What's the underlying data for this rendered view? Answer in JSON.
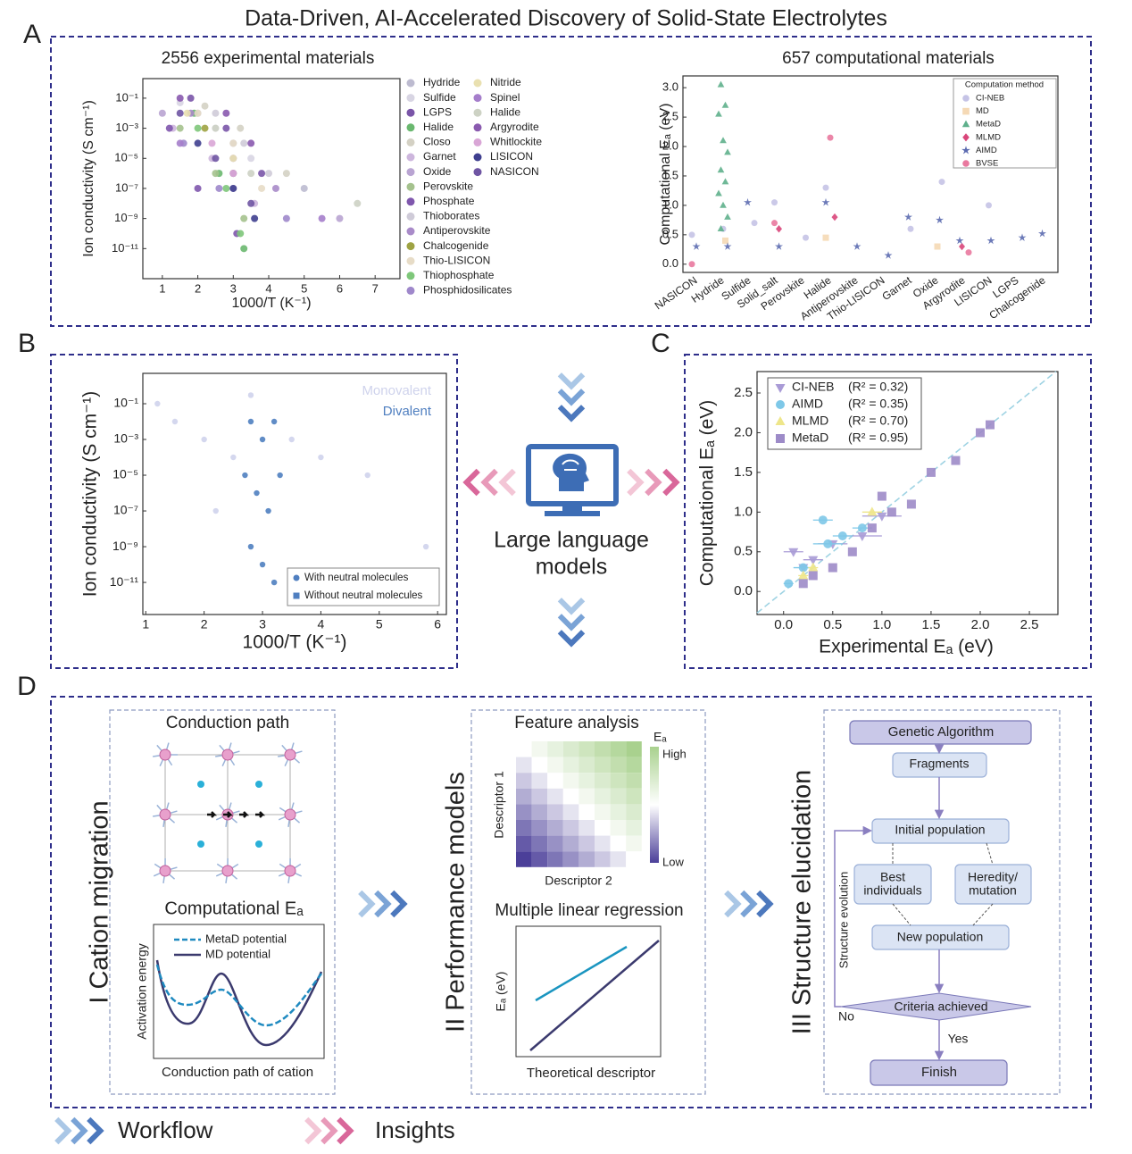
{
  "title": "Data-Driven, AI-Accelerated Discovery of Solid-State Electrolytes",
  "panel_labels": [
    "A",
    "B",
    "C",
    "D"
  ],
  "chart_data": [
    {
      "type": "scatter",
      "title": "2556 experimental materials",
      "x_label": "1000/T (K⁻¹)",
      "y_label": "Ion conductivity (S cm⁻¹)",
      "xlim": [
        0.45,
        7.7
      ],
      "xticks": [
        1,
        2,
        3,
        4,
        5,
        6,
        7
      ],
      "y_log": true,
      "ylim": [
        1e-13,
        2
      ],
      "yticks": [
        {
          "value": 0.1,
          "label": "10⁻¹"
        },
        {
          "value": 0.001,
          "label": "10⁻³"
        },
        {
          "value": 1e-05,
          "label": "10⁻⁵"
        },
        {
          "value": 1e-07,
          "label": "10⁻⁷"
        },
        {
          "value": 1e-09,
          "label": "10⁻⁹"
        },
        {
          "value": 1e-11,
          "label": "10⁻¹¹"
        }
      ],
      "series": [
        {
          "name": "Hydride",
          "color": "#bdbbd0",
          "marker": "circle",
          "x": [
            2.0,
            3.0,
            5.0
          ],
          "values": [
            0.01,
            0.0001,
            1e-07
          ]
        },
        {
          "name": "Sulfide",
          "color": "#d8d5e3",
          "marker": "circle",
          "x": [
            1.5,
            2.5,
            3.5
          ],
          "values": [
            0.05,
            0.001,
            1e-05
          ]
        },
        {
          "name": "LGPS",
          "color": "#7a55a8",
          "marker": "circle",
          "x": [
            1.8,
            2.8,
            3.8
          ],
          "values": [
            0.1,
            0.001,
            1e-06
          ]
        },
        {
          "name": "Halide",
          "color": "#6ab86f",
          "marker": "circle",
          "x": [
            1.9,
            2.6,
            3.3
          ],
          "values": [
            0.01,
            1e-06,
            1e-11
          ]
        },
        {
          "name": "Closo",
          "color": "#d4d1c4",
          "marker": "circle",
          "x": [
            2.2,
            3.2,
            4.5
          ],
          "values": [
            0.03,
            0.001,
            1e-06
          ]
        },
        {
          "name": "Garnet",
          "color": "#cdb6dd",
          "marker": "circle",
          "x": [
            1.3,
            2.4,
            3.6
          ],
          "values": [
            0.001,
            1e-05,
            1e-08
          ]
        },
        {
          "name": "Oxide",
          "color": "#b9a4d2",
          "marker": "circle",
          "x": [
            1.0,
            3.0,
            6.0
          ],
          "values": [
            0.01,
            1e-07,
            1e-09
          ]
        },
        {
          "name": "Perovskite",
          "color": "#a5c28e",
          "marker": "circle",
          "x": [
            1.5,
            2.5,
            3.3
          ],
          "values": [
            0.001,
            1e-06,
            1e-09
          ]
        },
        {
          "name": "Phosphate",
          "color": "#7f57ad",
          "marker": "circle",
          "x": [
            1.2,
            2.0,
            3.1
          ],
          "values": [
            0.001,
            1e-07,
            1e-10
          ]
        },
        {
          "name": "Thioborates",
          "color": "#cfcbd8",
          "marker": "circle",
          "x": [
            2.5,
            3.3,
            4.0
          ],
          "values": [
            0.01,
            0.0001,
            1e-06
          ]
        },
        {
          "name": "Antiperovskite",
          "color": "#a98bc9",
          "marker": "circle",
          "x": [
            1.8,
            3.0,
            4.2
          ],
          "values": [
            0.01,
            1e-05,
            1e-07
          ]
        },
        {
          "name": "Chalcogenide",
          "color": "#9ea343",
          "marker": "circle",
          "x": [
            2.2,
            3.0
          ],
          "values": [
            0.001,
            1e-06
          ]
        },
        {
          "name": "Thio-LISICON",
          "color": "#e7dcc7",
          "marker": "circle",
          "x": [
            2.0,
            3.0,
            3.8
          ],
          "values": [
            0.01,
            0.0001,
            1e-07
          ]
        },
        {
          "name": "Thiophosphate",
          "color": "#7ec77a",
          "marker": "circle",
          "x": [
            2.0,
            2.8,
            3.2
          ],
          "values": [
            0.001,
            1e-07,
            1e-10
          ]
        },
        {
          "name": "Phosphidosilicates",
          "color": "#9f88cb",
          "marker": "circle",
          "x": [
            1.6,
            2.6,
            4.5
          ],
          "values": [
            0.0001,
            1e-07,
            1e-09
          ]
        },
        {
          "name": "Nitride",
          "color": "#e9e0b0",
          "marker": "circle",
          "x": [
            1.7,
            3.0
          ],
          "values": [
            0.01,
            1e-05
          ]
        },
        {
          "name": "Spinel",
          "color": "#a57ecb",
          "marker": "circle",
          "x": [
            1.5,
            3.0,
            5.5
          ],
          "values": [
            0.0001,
            1e-06,
            1e-09
          ]
        },
        {
          "name": "Halide",
          "color": "#cdd2c4",
          "marker": "circle",
          "x": [
            2.5,
            3.5,
            6.5
          ],
          "values": [
            0.001,
            1e-06,
            1e-08
          ]
        },
        {
          "name": "Argyrodite",
          "color": "#8a5aaf",
          "marker": "circle",
          "x": [
            1.5,
            2.8,
            3.5
          ],
          "values": [
            0.1,
            0.01,
            0.0001
          ]
        },
        {
          "name": "Whitlockite",
          "color": "#d9a6d6",
          "marker": "circle",
          "x": [
            2.4,
            3.0
          ],
          "values": [
            0.0001,
            1e-06
          ]
        },
        {
          "name": "LISICON",
          "color": "#3f3f8f",
          "marker": "circle",
          "x": [
            2.0,
            3.0,
            3.6
          ],
          "values": [
            0.0001,
            1e-07,
            1e-09
          ]
        },
        {
          "name": "NASICON",
          "color": "#6f55a3",
          "marker": "circle",
          "x": [
            1.5,
            2.5,
            3.5
          ],
          "values": [
            0.01,
            1e-05,
            1e-08
          ]
        }
      ]
    },
    {
      "type": "strip",
      "title": "657 computational materials",
      "y_label": "Computational Eₐ (eV)",
      "legend_title": "Computation method",
      "categories": [
        "NASICON",
        "Hydride",
        "Sulfide",
        "Solid_salt",
        "Perovskite",
        "Halide",
        "Antiperovskite",
        "Thio-LISICON",
        "Garnet",
        "Oxide",
        "Argyrodite",
        "LISICON",
        "LGPS",
        "Chalcogenide"
      ],
      "ylim": [
        -0.14,
        3.2
      ],
      "yticks": [
        {
          "value": 0,
          "label": "0.0"
        },
        0.5,
        {
          "value": 1,
          "label": "1.0"
        },
        1.5,
        {
          "value": 2,
          "label": "2.0"
        },
        2.5,
        {
          "value": 3,
          "label": "3.0"
        }
      ],
      "series": [
        {
          "name": "CI-NEB",
          "color": "#c5c3e6",
          "marker": "circle",
          "x": [
            "NASICON",
            "Hydride",
            "Sulfide",
            "Solid_salt",
            "Perovskite",
            "Halide",
            "Garnet",
            "Oxide",
            "LISICON"
          ],
          "values": [
            0.5,
            0.6,
            0.7,
            1.05,
            0.45,
            1.3,
            0.6,
            1.4,
            1.0
          ]
        },
        {
          "name": "MD",
          "color": "#f5d9b5",
          "marker": "square",
          "x": [
            "Hydride",
            "Halide",
            "Oxide"
          ],
          "values": [
            0.4,
            0.45,
            0.3
          ]
        },
        {
          "name": "MetaD",
          "color": "#5fb08c",
          "marker": "triangle",
          "x": [
            "Hydride",
            "Hydride",
            "Hydride",
            "Hydride",
            "Hydride",
            "Hydride",
            "Hydride",
            "Hydride",
            "Hydride",
            "Hydride",
            "Hydride"
          ],
          "values": [
            3.05,
            2.7,
            2.55,
            2.1,
            1.9,
            1.6,
            1.4,
            1.2,
            1.0,
            0.8,
            0.6
          ]
        },
        {
          "name": "MLMD",
          "color": "#d9467a",
          "marker": "diamond",
          "x": [
            "Halide",
            "Argyrodite",
            "Solid_salt"
          ],
          "values": [
            0.8,
            0.3,
            0.6
          ]
        },
        {
          "name": "AIMD",
          "color": "#5c6bb0",
          "marker": "star",
          "x": [
            "NASICON",
            "Hydride",
            "Sulfide",
            "Solid_salt",
            "Halide",
            "Antiperovskite",
            "Thio-LISICON",
            "Garnet",
            "Oxide",
            "Argyrodite",
            "LISICON",
            "LGPS",
            "Chalcogenide"
          ],
          "values": [
            0.3,
            0.3,
            1.05,
            0.3,
            1.05,
            0.3,
            0.15,
            0.8,
            0.75,
            0.4,
            0.4,
            0.45,
            0.52
          ]
        },
        {
          "name": "BVSE",
          "color": "#e9799f",
          "marker": "circle",
          "x": [
            "NASICON",
            "Halide",
            "Argyrodite",
            "Solid_salt"
          ],
          "values": [
            0.0,
            2.15,
            0.2,
            0.7
          ]
        }
      ]
    },
    {
      "type": "scatter",
      "x_label": "1000/T (K⁻¹)",
      "y_label": "Ion conductivity (S cm⁻¹)",
      "xlim": [
        0.95,
        6.15
      ],
      "xticks": [
        1,
        2,
        3,
        4,
        5,
        6
      ],
      "y_log": true,
      "ylim": [
        1.6e-13,
        5
      ],
      "yticks": [
        {
          "value": 0.1,
          "label": "10⁻¹"
        },
        {
          "value": 0.001,
          "label": "10⁻³"
        },
        {
          "value": 1e-05,
          "label": "10⁻⁵"
        },
        {
          "value": 1e-07,
          "label": "10⁻⁷"
        },
        {
          "value": 1e-09,
          "label": "10⁻⁹"
        },
        {
          "value": 1e-11,
          "label": "10⁻¹¹"
        }
      ],
      "series": [
        {
          "name": "Monovalent",
          "color": "#cfd3ec",
          "marker": "circle",
          "x": [
            1.2,
            1.5,
            2.0,
            2.5,
            2.8,
            3.5,
            4.0,
            4.8,
            5.8,
            2.2
          ],
          "values": [
            0.1,
            0.01,
            0.001,
            0.0001,
            0.3,
            0.001,
            0.0001,
            1e-05,
            1e-09,
            1e-07
          ]
        },
        {
          "name": "Divalent",
          "color": "#4f7fc0",
          "marker": "circle",
          "x": [
            2.8,
            3.0,
            3.2,
            2.7,
            2.9,
            3.1,
            3.3,
            2.8,
            3.0,
            3.2
          ],
          "values": [
            0.01,
            0.001,
            0.01,
            1e-05,
            1e-06,
            1e-07,
            1e-05,
            1e-09,
            1e-10,
            1e-11
          ]
        }
      ],
      "marker_legend": [
        {
          "name": "With neutral molecules",
          "marker": "circle"
        },
        {
          "name": "Without neutral molecules",
          "marker": "square"
        }
      ]
    },
    {
      "type": "scatter",
      "x_label": "Experimental Eₐ (eV)",
      "y_label": "Computational Eₐ (eV)",
      "diagonal": true,
      "xlim": [
        -0.27,
        2.79
      ],
      "xticks": [
        {
          "value": 0,
          "label": "0.0"
        },
        0.5,
        {
          "value": 1,
          "label": "1.0"
        },
        1.5,
        {
          "value": 2,
          "label": "2.0"
        },
        2.5
      ],
      "ylim": [
        -0.29,
        2.77
      ],
      "yticks": [
        {
          "value": 0,
          "label": "0.0"
        },
        0.5,
        {
          "value": 1,
          "label": "1.0"
        },
        1.5,
        {
          "value": 2,
          "label": "2.0"
        },
        2.5
      ],
      "series": [
        {
          "name": "CI-NEB",
          "r2": "(R² = 0.32)",
          "color": "#a99bd6",
          "marker": "triangle-down",
          "x": [
            0.1,
            0.3,
            0.5,
            0.8,
            1.0,
            0.2
          ],
          "values": [
            0.5,
            0.4,
            0.6,
            0.7,
            0.95,
            0.3
          ],
          "x_err": [
            0.1,
            0.1,
            0.15,
            0.2,
            0.2,
            0.05
          ]
        },
        {
          "name": "AIMD",
          "r2": "(R² = 0.35)",
          "color": "#7ec8e8",
          "marker": "circle",
          "x": [
            0.05,
            0.2,
            0.4,
            0.45,
            0.6,
            0.8
          ],
          "values": [
            0.1,
            0.3,
            0.9,
            0.6,
            0.7,
            0.8
          ],
          "x_err": [
            0.05,
            0.1,
            0.1,
            0.15,
            0.1,
            0.1
          ]
        },
        {
          "name": "MLMD",
          "r2": "(R² = 0.70)",
          "color": "#eee68a",
          "marker": "triangle",
          "x": [
            0.2,
            0.3,
            0.9
          ],
          "values": [
            0.2,
            0.3,
            1.0
          ],
          "x_err": [
            0.05,
            0.05,
            0.1
          ]
        },
        {
          "name": "MetaD",
          "r2": "(R² = 0.95)",
          "color": "#9d8bc8",
          "marker": "square",
          "x": [
            0.2,
            0.3,
            0.5,
            0.7,
            0.9,
            1.1,
            1.3,
            1.5,
            1.75,
            2.0,
            2.1,
            1.0
          ],
          "values": [
            0.1,
            0.2,
            0.3,
            0.5,
            0.8,
            1.0,
            1.1,
            1.5,
            1.65,
            2.0,
            2.1,
            1.2
          ]
        }
      ]
    }
  ],
  "center": {
    "lines": [
      "Large language",
      "models"
    ]
  },
  "panel_d": {
    "sections": [
      {
        "title": "I Cation migration",
        "subtitle": "Conduction path",
        "plot_title": "Computational Eₐ",
        "legend": [
          "MetaD potential",
          "MD potential"
        ],
        "y_label": "Activation energy",
        "x_label": "Conduction path of cation"
      },
      {
        "title": "II Performance models",
        "subtitle": "Feature analysis",
        "colorbar_title": "Eₐ",
        "colorbar_high": "High",
        "colorbar_low": "Low",
        "y_label": "Descriptor 1",
        "x_label": "Descriptor 2",
        "plot_title": "Multiple linear regression",
        "plot_y_label": "Eₐ (eV)",
        "plot_x_label": "Theoretical descriptor"
      },
      {
        "title": "III Structure elucidation",
        "nodes": [
          "Genetic Algorithm",
          "Fragments",
          "Initial population",
          [
            "Best",
            "individuals"
          ],
          [
            "Heredity/",
            "mutation"
          ],
          "New population",
          "Criteria achieved",
          "Finish"
        ],
        "loop_label": "Structure evolution",
        "no": "No",
        "yes": "Yes"
      }
    ]
  },
  "legend": {
    "workflow": "Workflow",
    "insights": "Insights"
  }
}
